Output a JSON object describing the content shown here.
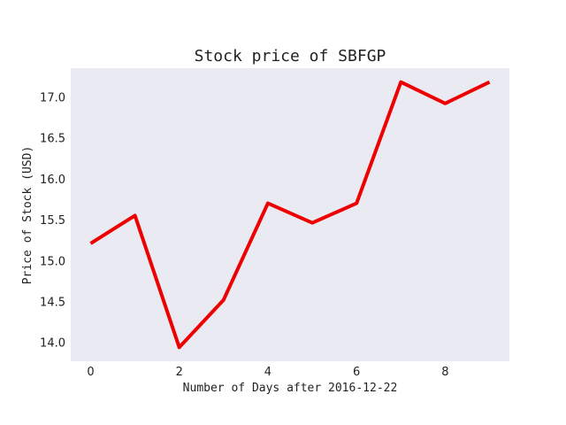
{
  "chart_data": {
    "type": "line",
    "title": "Stock price of SBFGP",
    "xlabel": "Number of Days after 2016-12-22",
    "ylabel": "Price of Stock (USD)",
    "x": [
      0,
      1,
      2,
      3,
      4,
      5,
      6,
      7,
      8,
      9
    ],
    "series": [
      {
        "values": [
          15.21,
          15.55,
          13.94,
          14.52,
          15.7,
          15.46,
          15.7,
          17.18,
          16.92,
          17.18
        ],
        "color": "#ee0000"
      }
    ],
    "xlim": [
      -0.45,
      9.45
    ],
    "ylim": [
      13.77,
      17.35
    ],
    "xticks": [
      0,
      2,
      4,
      6,
      8
    ],
    "xtick_labels": [
      "0",
      "2",
      "4",
      "6",
      "8"
    ],
    "yticks": [
      14.0,
      14.5,
      15.0,
      15.5,
      16.0,
      16.5,
      17.0
    ],
    "ytick_labels": [
      "14.0",
      "14.5",
      "15.0",
      "15.5",
      "16.0",
      "16.5",
      "17.0"
    ],
    "grid": false,
    "background": "#eaeaf2"
  }
}
